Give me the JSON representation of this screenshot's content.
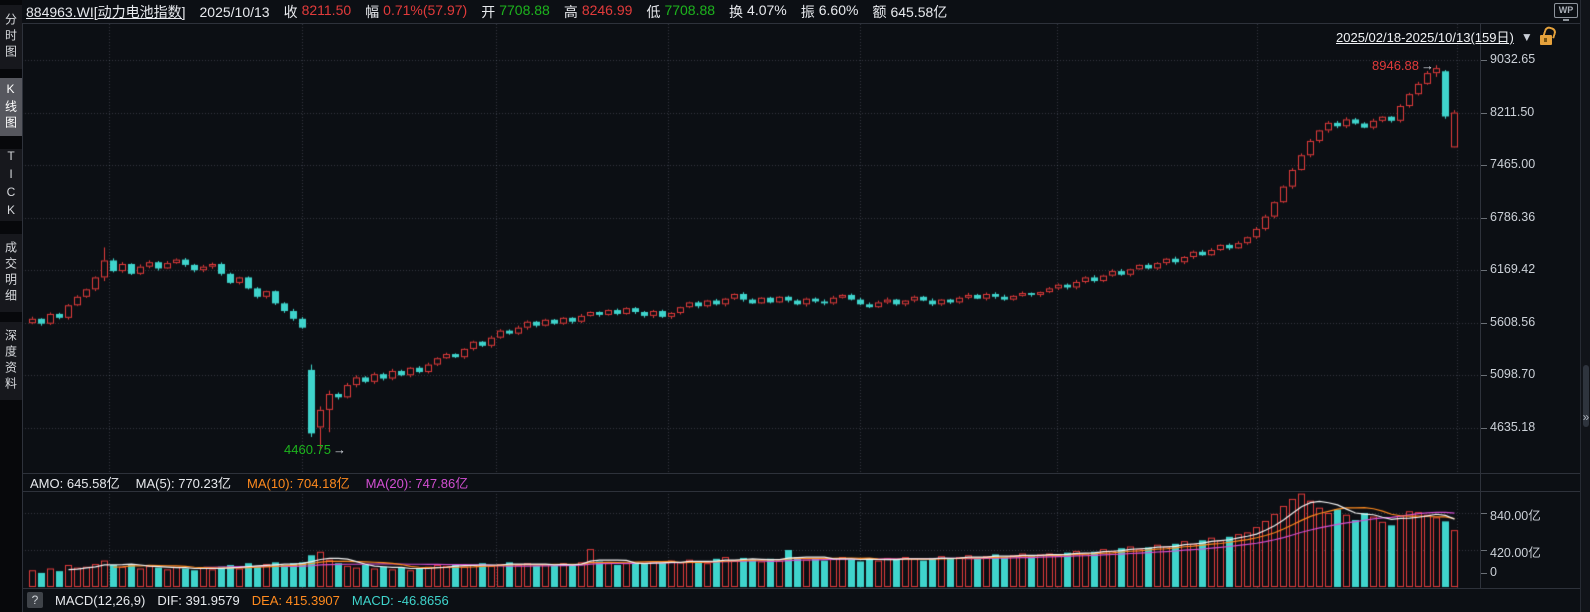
{
  "header": {
    "symbol": "884963.WI[动力电池指数]",
    "date": "2025/10/13",
    "fields": [
      {
        "label": "收",
        "value": "8211.50",
        "color": "up"
      },
      {
        "label": "幅",
        "value": "0.71%(57.97)",
        "color": "up"
      },
      {
        "label": "开",
        "value": "7708.88",
        "color": "down"
      },
      {
        "label": "高",
        "value": "8246.99",
        "color": "up"
      },
      {
        "label": "低",
        "value": "7708.88",
        "color": "down"
      },
      {
        "label": "换",
        "value": "4.07%",
        "color": "flat"
      },
      {
        "label": "振",
        "value": "6.60%",
        "color": "flat"
      },
      {
        "label": "额",
        "value": "645.58亿",
        "color": "flat"
      }
    ]
  },
  "wp_badge": "WP",
  "sidebar": {
    "items": [
      {
        "label": "分时图",
        "selected": false
      },
      {
        "label": "K线图",
        "selected": true
      },
      {
        "label": "TICK",
        "selected": false
      },
      {
        "label": "成交明细",
        "selected": false
      },
      {
        "label": "深度资料",
        "selected": false
      }
    ]
  },
  "range_bar": {
    "text": "2025/02/18-2025/10/13(159日)",
    "caret": "▼",
    "lock_state": "unlocked"
  },
  "amo_row": {
    "amo": "AMO: 645.58亿",
    "ma5": "MA(5): 770.23亿",
    "ma10": "MA(10): 704.18亿",
    "ma20": "MA(20): 747.86亿"
  },
  "macd_row": {
    "help": "?",
    "label": "MACD(12,26,9)",
    "dif": "DIF: 391.9579",
    "dea": "DEA: 415.3907",
    "macd": "MACD: -46.8656"
  },
  "right_rail": {
    "expand_icon": "»"
  },
  "colors": {
    "up": "#e23b3b",
    "down": "#1db41d",
    "flat": "#e8eaee",
    "candle_up": "#e23b3b",
    "candle_down": "#3fd4cc",
    "ma5": "#f2f2f2",
    "ma10": "#ff8a1e",
    "ma20": "#d24fd2",
    "background": "#0c0f14"
  },
  "chart_data": {
    "type": "candlestick",
    "scale": "log",
    "x_range": "2025/02/18 - 2025/10/13",
    "num_days": 159,
    "price_axis_ticks": [
      {
        "t": "9032.65",
        "p": 9032.65
      },
      {
        "t": "8211.50",
        "p": 8211.5
      },
      {
        "t": "7465.00",
        "p": 7465.0
      },
      {
        "t": "6786.36",
        "p": 6786.36
      },
      {
        "t": "6169.42",
        "p": 6169.42
      },
      {
        "t": "5608.56",
        "p": 5608.56
      },
      {
        "t": "5098.70",
        "p": 5098.7
      },
      {
        "t": "4635.18",
        "p": 4635.18
      }
    ],
    "volume_axis_ticks": [
      {
        "t": "840.00亿",
        "v": 840
      },
      {
        "t": "420.00亿",
        "v": 420
      },
      {
        "t": "0",
        "v": 0
      }
    ],
    "annotations": {
      "high": {
        "text": "8946.88",
        "arrow": "→",
        "index": 156
      },
      "low": {
        "text": "4460.75",
        "arrow": "→",
        "index": 32
      }
    },
    "closes": [
      5650,
      5600,
      5700,
      5660,
      5790,
      5880,
      5960,
      6090,
      6280,
      6160,
      6240,
      6130,
      6210,
      6260,
      6190,
      6250,
      6290,
      6230,
      6170,
      6210,
      6240,
      6130,
      6030,
      6090,
      5970,
      5880,
      5940,
      5810,
      5730,
      5650,
      5560,
      4590,
      4790,
      4930,
      4900,
      5010,
      5080,
      5040,
      5110,
      5070,
      5140,
      5100,
      5170,
      5130,
      5200,
      5260,
      5300,
      5270,
      5350,
      5420,
      5380,
      5460,
      5530,
      5500,
      5560,
      5620,
      5580,
      5640,
      5600,
      5660,
      5620,
      5680,
      5720,
      5690,
      5740,
      5700,
      5760,
      5720,
      5680,
      5730,
      5670,
      5710,
      5770,
      5820,
      5780,
      5840,
      5800,
      5860,
      5910,
      5850,
      5810,
      5870,
      5820,
      5880,
      5840,
      5800,
      5860,
      5830,
      5810,
      5870,
      5900,
      5850,
      5800,
      5770,
      5820,
      5850,
      5800,
      5840,
      5880,
      5840,
      5800,
      5850,
      5820,
      5870,
      5900,
      5860,
      5910,
      5880,
      5850,
      5890,
      5920,
      5900,
      5930,
      5970,
      6010,
      5980,
      6040,
      6090,
      6050,
      6110,
      6160,
      6120,
      6180,
      6230,
      6190,
      6250,
      6300,
      6260,
      6320,
      6380,
      6340,
      6400,
      6460,
      6420,
      6480,
      6550,
      6650,
      6800,
      6980,
      7180,
      7400,
      7600,
      7800,
      7950,
      8060,
      8010,
      8110,
      8050,
      7990,
      8090,
      8150,
      8090,
      8310,
      8490,
      8650,
      8820,
      8900,
      8153.53,
      8211.5
    ],
    "special_candles": {
      "8": [
        6090,
        6430,
        6050,
        6280
      ],
      "31": [
        5150,
        5200,
        4560,
        4590
      ],
      "32": [
        4640,
        4820,
        4460.75,
        4790
      ],
      "33": [
        4790,
        4960,
        4600,
        4930
      ],
      "156": [
        8820,
        8946.88,
        8760,
        8900
      ],
      "157": [
        8850,
        8870,
        8120,
        8153.53
      ],
      "158": [
        7708.88,
        8246.99,
        7708.88,
        8211.5
      ]
    },
    "volumes": [
      190,
      160,
      210,
      180,
      250,
      220,
      230,
      260,
      300,
      250,
      230,
      260,
      210,
      240,
      220,
      200,
      230,
      210,
      190,
      220,
      200,
      230,
      250,
      210,
      270,
      240,
      260,
      280,
      250,
      270,
      280,
      360,
      400,
      310,
      270,
      240,
      220,
      250,
      210,
      230,
      200,
      220,
      190,
      210,
      230,
      250,
      240,
      260,
      230,
      250,
      270,
      240,
      260,
      280,
      250,
      270,
      240,
      260,
      240,
      270,
      250,
      280,
      430,
      290,
      270,
      250,
      270,
      280,
      260,
      290,
      270,
      300,
      280,
      310,
      290,
      270,
      320,
      340,
      300,
      330,
      310,
      290,
      320,
      300,
      420,
      340,
      310,
      330,
      300,
      320,
      340,
      310,
      290,
      320,
      300,
      330,
      310,
      340,
      320,
      300,
      330,
      350,
      320,
      340,
      360,
      330,
      350,
      370,
      340,
      360,
      380,
      350,
      370,
      380,
      360,
      390,
      410,
      380,
      400,
      430,
      410,
      440,
      460,
      430,
      450,
      480,
      460,
      490,
      520,
      490,
      530,
      560,
      530,
      570,
      600,
      620,
      680,
      750,
      830,
      920,
      1000,
      1060,
      980,
      900,
      840,
      880,
      820,
      760,
      840,
      800,
      740,
      700,
      810,
      860,
      850,
      820,
      790,
      745,
      645.58
    ]
  }
}
